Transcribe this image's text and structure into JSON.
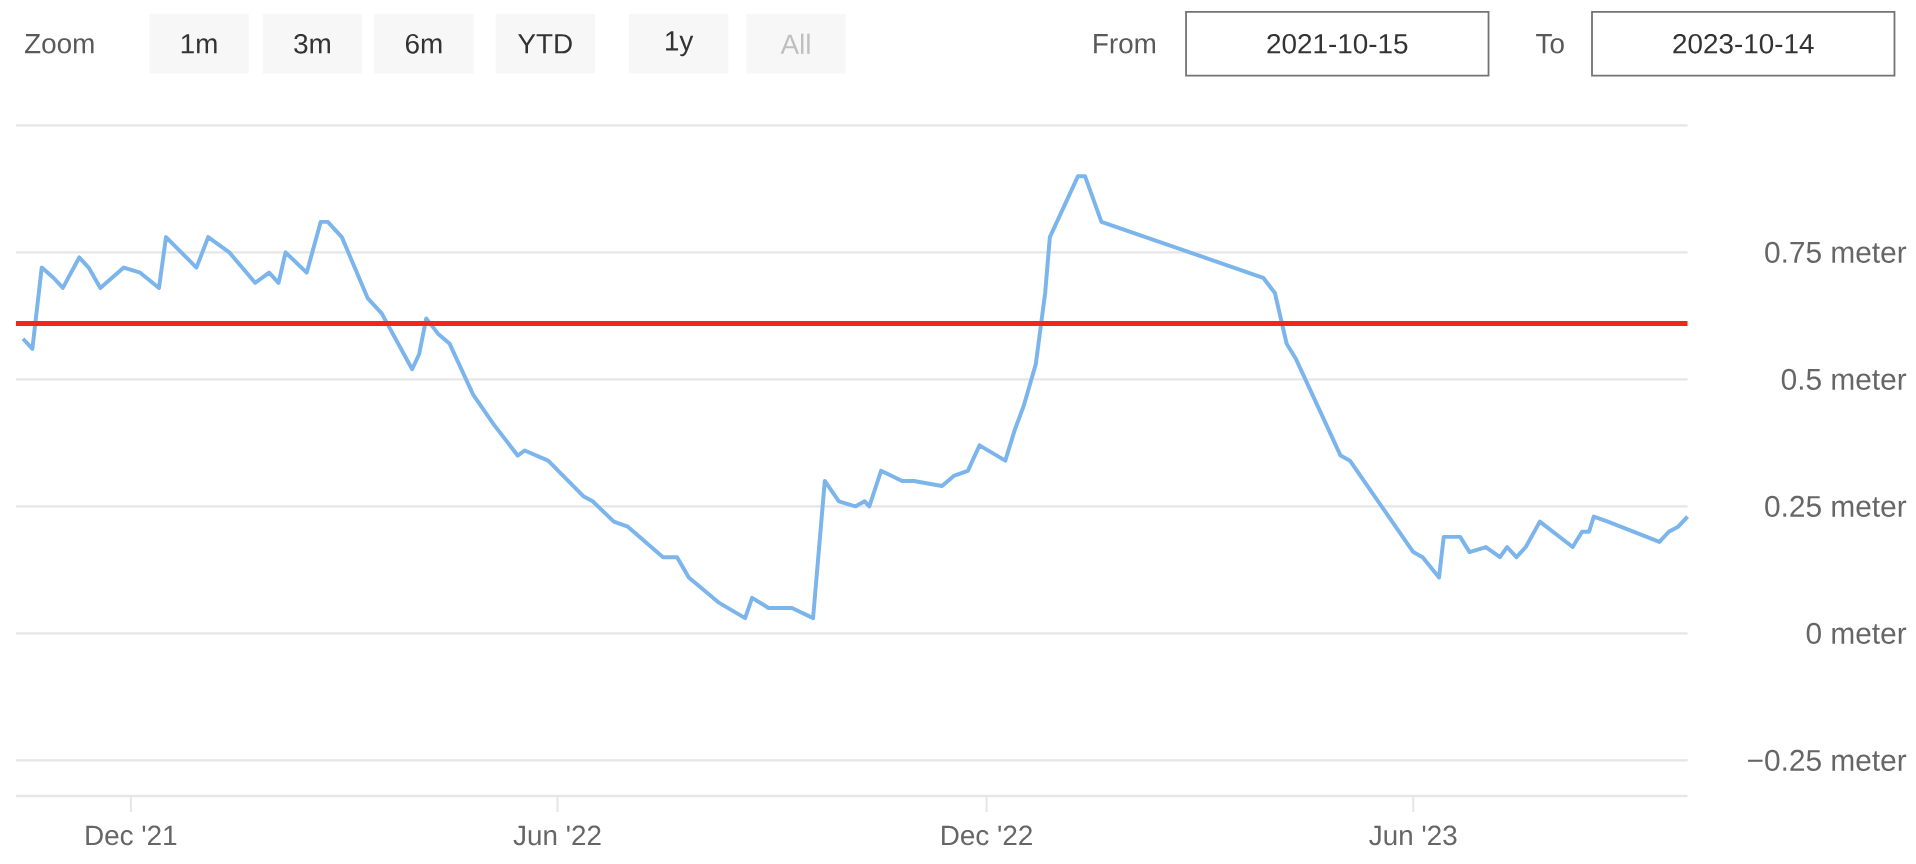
{
  "chart_data": {
    "type": "line",
    "x": [
      "2021-10-16",
      "2021-10-20",
      "2021-10-24",
      "2021-10-29",
      "2021-11-02",
      "2021-11-09",
      "2021-11-13",
      "2021-11-18",
      "2021-11-28",
      "2021-12-05",
      "2021-12-13",
      "2021-12-16",
      "2021-12-29",
      "2022-01-03",
      "2022-01-12",
      "2022-01-23",
      "2022-01-29",
      "2022-02-02",
      "2022-02-05",
      "2022-02-14",
      "2022-02-20",
      "2022-02-23",
      "2022-03-01",
      "2022-03-12",
      "2022-03-18",
      "2022-03-31",
      "2022-04-03",
      "2022-04-06",
      "2022-04-11",
      "2022-04-16",
      "2022-04-26",
      "2022-05-05",
      "2022-05-15",
      "2022-05-18",
      "2022-05-28",
      "2022-06-12",
      "2022-06-16",
      "2022-06-25",
      "2022-07-01",
      "2022-07-16",
      "2022-07-22",
      "2022-07-27",
      "2022-08-09",
      "2022-08-20",
      "2022-08-23",
      "2022-08-30",
      "2022-09-09",
      "2022-09-18",
      "2022-09-23",
      "2022-09-29",
      "2022-10-06",
      "2022-10-10",
      "2022-10-12",
      "2022-10-17",
      "2022-10-26",
      "2022-10-31",
      "2022-11-12",
      "2022-11-17",
      "2022-11-23",
      "2022-11-28",
      "2022-12-09",
      "2022-12-13",
      "2022-12-17",
      "2022-12-22",
      "2022-12-26",
      "2022-12-28",
      "2022-12-31",
      "2023-01-03",
      "2023-01-09",
      "2023-01-12",
      "2023-01-19",
      "2023-03-29",
      "2023-04-03",
      "2023-04-08",
      "2023-04-12",
      "2023-05-01",
      "2023-05-05",
      "2023-06-01",
      "2023-06-05",
      "2023-06-12",
      "2023-06-14",
      "2023-06-21",
      "2023-06-25",
      "2023-07-02",
      "2023-07-08",
      "2023-07-11",
      "2023-07-15",
      "2023-07-19",
      "2023-07-25",
      "2023-08-08",
      "2023-08-12",
      "2023-08-15",
      "2023-08-17",
      "2023-08-23",
      "2023-09-14",
      "2023-09-18",
      "2023-09-22",
      "2023-09-26"
    ],
    "series": [
      {
        "color": "#7cb5ec",
        "values": [
          0.58,
          0.56,
          0.72,
          0.7,
          0.68,
          0.74,
          0.72,
          0.68,
          0.72,
          0.71,
          0.68,
          0.78,
          0.72,
          0.78,
          0.75,
          0.69,
          0.71,
          0.69,
          0.75,
          0.71,
          0.81,
          0.81,
          0.78,
          0.66,
          0.63,
          0.52,
          0.55,
          0.62,
          0.59,
          0.57,
          0.47,
          0.41,
          0.35,
          0.36,
          0.34,
          0.27,
          0.26,
          0.22,
          0.21,
          0.15,
          0.15,
          0.11,
          0.06,
          0.03,
          0.07,
          0.05,
          0.05,
          0.03,
          0.3,
          0.26,
          0.25,
          0.26,
          0.25,
          0.32,
          0.3,
          0.3,
          0.29,
          0.31,
          0.32,
          0.37,
          0.34,
          0.4,
          0.45,
          0.53,
          0.67,
          0.78,
          0.81,
          0.84,
          0.9,
          0.9,
          0.81,
          0.7,
          0.67,
          0.57,
          0.54,
          0.35,
          0.34,
          0.16,
          0.15,
          0.11,
          0.19,
          0.19,
          0.16,
          0.17,
          0.15,
          0.17,
          0.15,
          0.17,
          0.22,
          0.17,
          0.2,
          0.2,
          0.23,
          0.22,
          0.18,
          0.2,
          0.21,
          0.23
        ]
      }
    ],
    "xlim": [
      "2021-10-13",
      "2023-09-26"
    ],
    "ylim": [
      -0.32,
      1.0
    ],
    "xticks": [
      {
        "value": "2021-12-01",
        "label": "Dec '21"
      },
      {
        "value": "2022-06-01",
        "label": "Jun '22"
      },
      {
        "value": "2022-12-01",
        "label": "Dec '22"
      },
      {
        "value": "2023-06-01",
        "label": "Jun '23"
      }
    ],
    "yticks": [
      {
        "value": -0.25,
        "label": "−0.25 meter"
      },
      {
        "value": 0,
        "label": "0 meter"
      },
      {
        "value": 0.25,
        "label": "0.25 meter"
      },
      {
        "value": 0.5,
        "label": "0.5 meter"
      },
      {
        "value": 0.75,
        "label": "0.75 meter"
      },
      {
        "value": 1.0,
        "label": null
      }
    ],
    "ref_lines": [
      {
        "axis": "y",
        "value": 0.61,
        "color": "#f0281a"
      }
    ],
    "grid": "y",
    "line_style": "solid",
    "annotations": [
      "Zoom",
      "1m",
      "3m",
      "6m",
      "YTD",
      "1y",
      "All",
      "From",
      "2021-10-15",
      "To",
      "2023-10-14"
    ]
  }
}
